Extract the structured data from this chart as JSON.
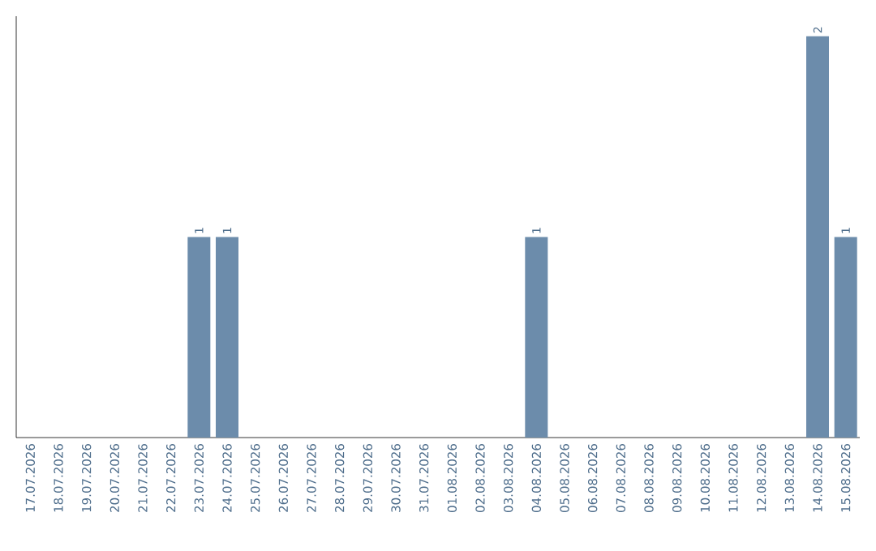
{
  "chart_data": {
    "type": "bar",
    "categories": [
      "17.07.2026",
      "18.07.2026",
      "19.07.2026",
      "20.07.2026",
      "21.07.2026",
      "22.07.2026",
      "23.07.2026",
      "24.07.2026",
      "25.07.2026",
      "26.07.2026",
      "27.07.2026",
      "28.07.2026",
      "29.07.2026",
      "30.07.2026",
      "31.07.2026",
      "01.08.2026",
      "02.08.2026",
      "03.08.2026",
      "04.08.2026",
      "05.08.2026",
      "06.08.2026",
      "07.08.2026",
      "08.08.2026",
      "09.08.2026",
      "10.08.2026",
      "11.08.2026",
      "12.08.2026",
      "13.08.2026",
      "14.08.2026",
      "15.08.2026"
    ],
    "values": [
      0,
      0,
      0,
      0,
      0,
      0,
      1,
      1,
      0,
      0,
      0,
      0,
      0,
      0,
      0,
      0,
      0,
      0,
      1,
      0,
      0,
      0,
      0,
      0,
      0,
      0,
      0,
      0,
      2,
      1
    ],
    "value_labels": [
      null,
      null,
      null,
      null,
      null,
      null,
      "1",
      "1",
      null,
      null,
      null,
      null,
      null,
      null,
      null,
      null,
      null,
      null,
      "1",
      null,
      null,
      null,
      null,
      null,
      null,
      null,
      null,
      null,
      "2",
      "1"
    ],
    "color": "#6c8cab",
    "ylim": [
      0,
      2.1
    ],
    "tick_labels": "x",
    "grid": false
  }
}
